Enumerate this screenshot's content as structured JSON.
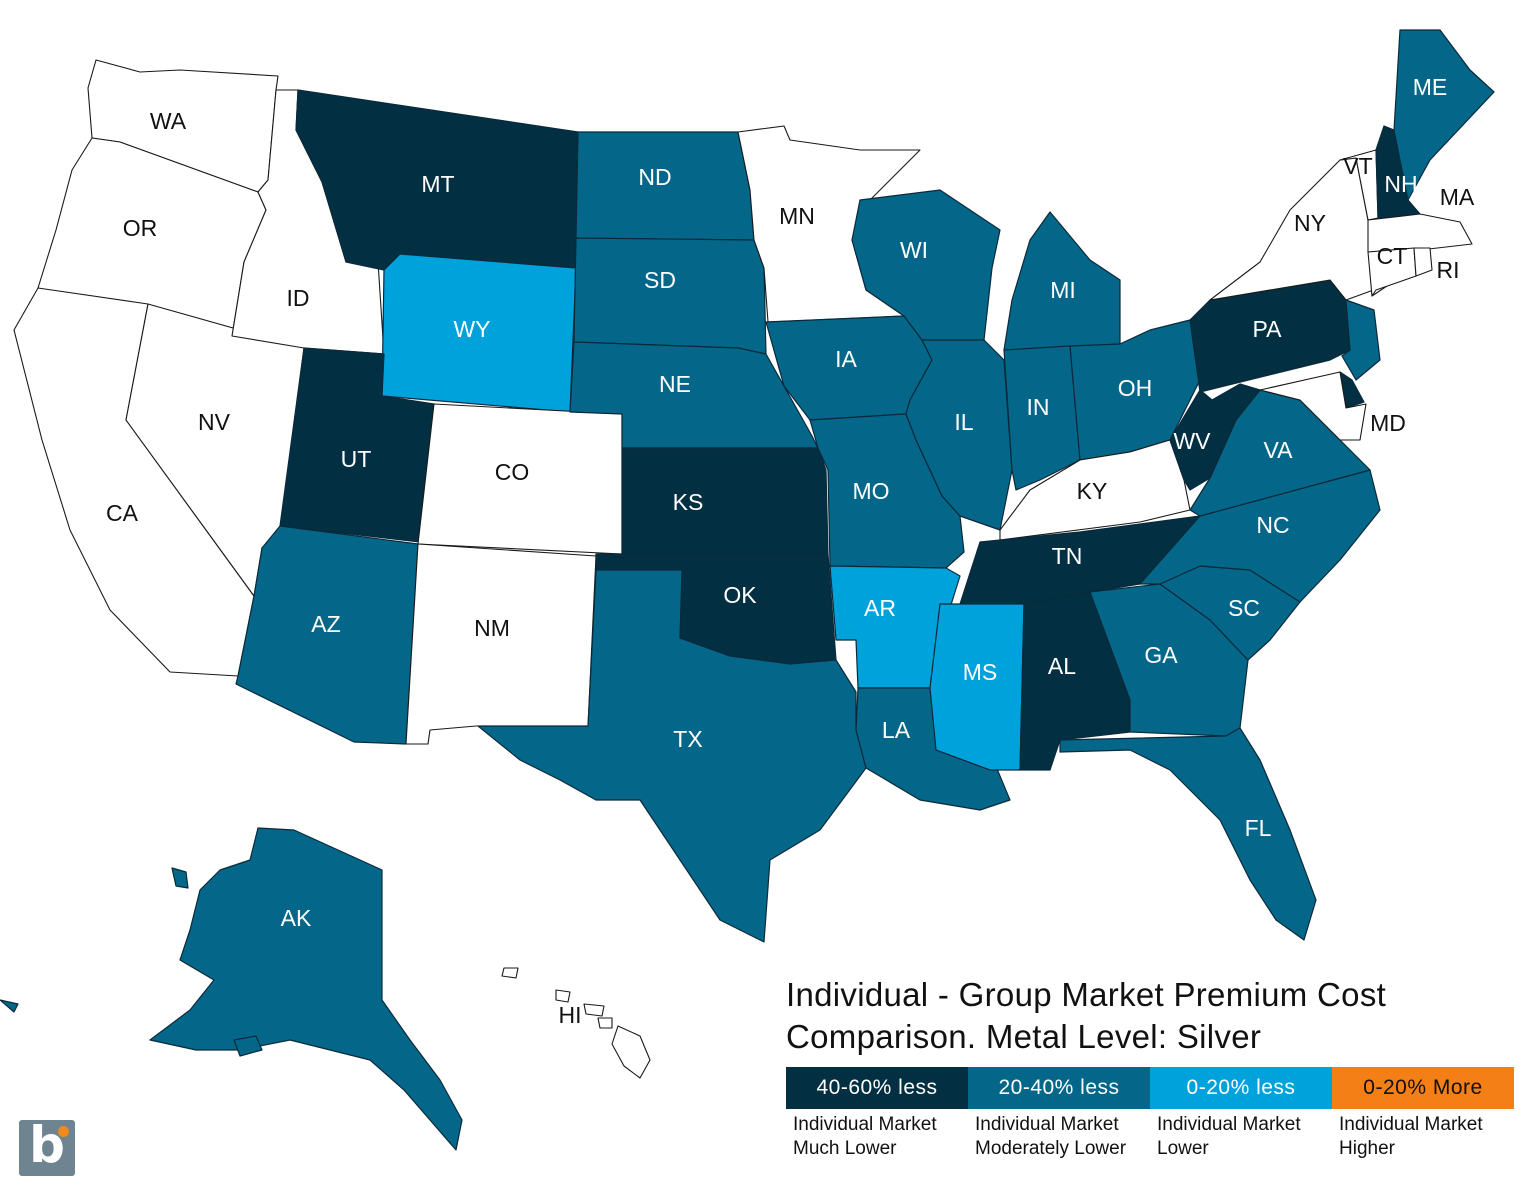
{
  "map_data": {
    "categories": [
      {
        "key": "c0",
        "range": "",
        "color": "#ffffff",
        "text_color": "#111111"
      },
      {
        "key": "c1",
        "range": "40-60% less",
        "desc_line1": "Individual Market",
        "desc_line2": "Much Lower",
        "color": "#032f43",
        "text_color": "#ffffff"
      },
      {
        "key": "c2",
        "range": "20-40% less",
        "desc_line1": "Individual Market",
        "desc_line2": "Moderately Lower",
        "color": "#046789",
        "text_color": "#ffffff"
      },
      {
        "key": "c3",
        "range": "0-20% less",
        "desc_line1": "Individual Market",
        "desc_line2": "Lower",
        "color": "#00a2db",
        "text_color": "#ffffff"
      },
      {
        "key": "c4",
        "range": "0-20% More",
        "desc_line1": "Individual Market",
        "desc_line2": "Higher",
        "color": "#f57f17",
        "text_color": "#111111"
      }
    ],
    "states": {
      "WA": "c0",
      "OR": "c0",
      "CA": "c0",
      "NV": "c0",
      "ID": "c0",
      "MT": "c1",
      "WY": "c3",
      "UT": "c1",
      "CO": "c0",
      "AZ": "c2",
      "NM": "c0",
      "ND": "c2",
      "SD": "c2",
      "NE": "c2",
      "KS": "c1",
      "OK": "c1",
      "TX": "c2",
      "MN": "c0",
      "IA": "c2",
      "MO": "c2",
      "AR": "c3",
      "LA": "c2",
      "WI": "c2",
      "IL": "c2",
      "MI": "c2",
      "IN": "c2",
      "OH": "c2",
      "KY": "c0",
      "TN": "c1",
      "MS": "c3",
      "AL": "c1",
      "GA": "c2",
      "FL": "c2",
      "SC": "c2",
      "NC": "c2",
      "VA": "c2",
      "WV": "c1",
      "PA": "c1",
      "NY": "c0",
      "VT": "c0",
      "NH": "c1",
      "ME": "c2",
      "MA": "c0",
      "CT": "c0",
      "RI": "c0",
      "NJ": "c2",
      "DE": "c1",
      "MD": "c0",
      "AK": "c2",
      "HI": "c0"
    }
  },
  "legend": {
    "title_line1": "Individual - Group Market Premium Cost",
    "title_line2": "Comparison. Metal Level: Silver"
  },
  "logo": {
    "letter": "b"
  }
}
